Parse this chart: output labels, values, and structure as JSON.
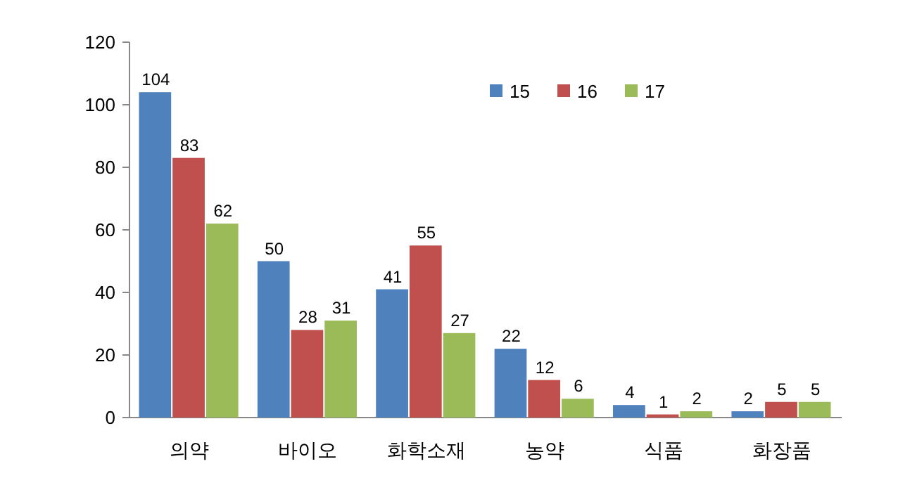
{
  "chart_data": {
    "type": "bar",
    "categories": [
      "의약",
      "바이오",
      "화학소재",
      "농약",
      "식품",
      "화장품"
    ],
    "series": [
      {
        "name": "15",
        "color": "#4f81bd",
        "values": [
          104,
          50,
          41,
          22,
          4,
          2
        ]
      },
      {
        "name": "16",
        "color": "#c0504d",
        "values": [
          83,
          28,
          55,
          12,
          1,
          5
        ]
      },
      {
        "name": "17",
        "color": "#9bbb59",
        "values": [
          62,
          31,
          27,
          6,
          2,
          5
        ]
      }
    ],
    "ylim": [
      0,
      120
    ],
    "yticks": [
      0,
      20,
      40,
      60,
      80,
      100,
      120
    ],
    "grid": false,
    "legend": "top right",
    "data_labels": true
  }
}
